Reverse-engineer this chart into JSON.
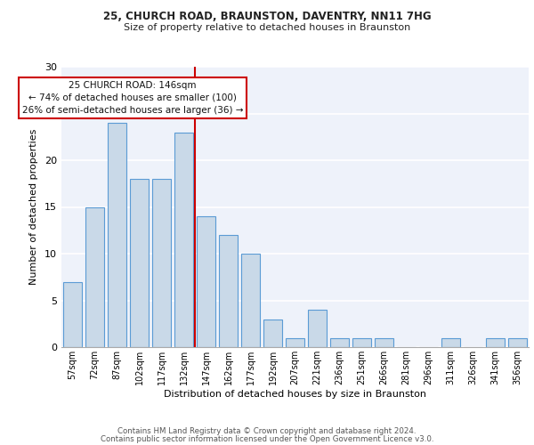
{
  "title1": "25, CHURCH ROAD, BRAUNSTON, DAVENTRY, NN11 7HG",
  "title2": "Size of property relative to detached houses in Braunston",
  "xlabel": "Distribution of detached houses by size in Braunston",
  "ylabel": "Number of detached properties",
  "categories": [
    "57sqm",
    "72sqm",
    "87sqm",
    "102sqm",
    "117sqm",
    "132sqm",
    "147sqm",
    "162sqm",
    "177sqm",
    "192sqm",
    "207sqm",
    "221sqm",
    "236sqm",
    "251sqm",
    "266sqm",
    "281sqm",
    "296sqm",
    "311sqm",
    "326sqm",
    "341sqm",
    "356sqm"
  ],
  "values": [
    7,
    15,
    24,
    18,
    18,
    23,
    14,
    12,
    10,
    3,
    1,
    4,
    1,
    1,
    1,
    0,
    0,
    1,
    0,
    1,
    1
  ],
  "bar_color": "#c9d9e8",
  "bar_edge_color": "#5b9bd5",
  "background_color": "#eef2fa",
  "grid_color": "#ffffff",
  "red_line_color": "#cc0000",
  "annotation_box_color": "#ffffff",
  "annotation_box_edge": "#cc0000",
  "ylim": [
    0,
    30
  ],
  "yticks": [
    0,
    5,
    10,
    15,
    20,
    25,
    30
  ],
  "annotation_title": "25 CHURCH ROAD: 146sqm",
  "annotation_line1": "← 74% of detached houses are smaller (100)",
  "annotation_line2": "26% of semi-detached houses are larger (36) →",
  "footer1": "Contains HM Land Registry data © Crown copyright and database right 2024.",
  "footer2": "Contains public sector information licensed under the Open Government Licence v3.0."
}
